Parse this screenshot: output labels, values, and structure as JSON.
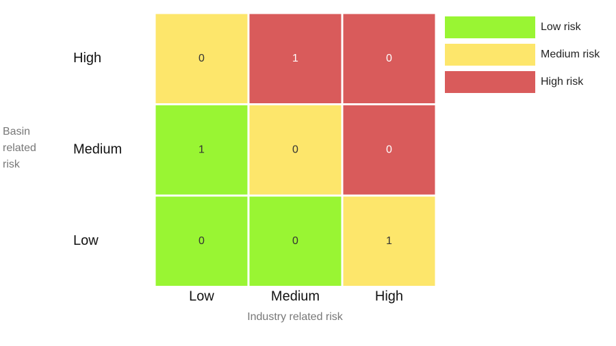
{
  "chart_data": {
    "type": "heatmap",
    "x_label": "Industry related risk",
    "y_label": "Basin related risk",
    "x_categories": [
      "Low",
      "Medium",
      "High"
    ],
    "y_categories": [
      "High",
      "Medium",
      "Low"
    ],
    "values": [
      [
        0,
        1,
        0
      ],
      [
        1,
        0,
        0
      ],
      [
        0,
        0,
        1
      ]
    ],
    "colors": [
      [
        "#fde66b",
        "#d95b5b",
        "#d95b5b"
      ],
      [
        "#99f533",
        "#fde66b",
        "#d95b5b"
      ],
      [
        "#99f533",
        "#99f533",
        "#fde66b"
      ]
    ],
    "legend": [
      {
        "name": "Low risk",
        "color": "#99f533"
      },
      {
        "name": "Medium risk",
        "color": "#fde66b"
      },
      {
        "name": "High risk",
        "color": "#d95b5b"
      }
    ]
  }
}
